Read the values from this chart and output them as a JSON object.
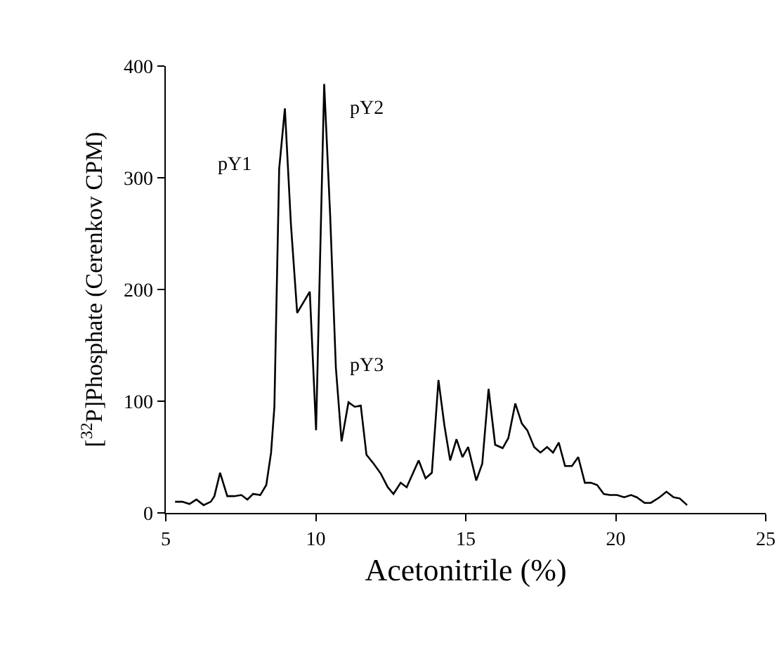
{
  "chart_data": {
    "type": "line",
    "xlabel": "Acetonitrile (%)",
    "ylabel": "[$^{32}$P]Phosphate (Cerenkov CPM)",
    "xlim": [
      5,
      25
    ],
    "ylim": [
      0,
      400
    ],
    "xticks": [
      5,
      10,
      15,
      20,
      25
    ],
    "yticks": [
      0,
      100,
      200,
      300,
      400
    ],
    "grid": false,
    "marker": "none",
    "line_style": "solid",
    "annotations": [
      "pY1",
      "pY2",
      "pY3"
    ],
    "series": [
      {
        "color": "#000000",
        "x": [
          5.31,
          5.55,
          5.79,
          6.02,
          6.26,
          6.5,
          6.62,
          6.81,
          7.05,
          7.28,
          7.52,
          7.72,
          7.91,
          8.15,
          8.35,
          8.51,
          8.62,
          8.78,
          8.97,
          9.17,
          9.38,
          9.8,
          10.01,
          10.28,
          10.48,
          10.67,
          10.86,
          11.09,
          11.3,
          11.5,
          11.69,
          11.93,
          12.17,
          12.4,
          12.59,
          12.83,
          13.03,
          13.43,
          13.66,
          13.87,
          14.09,
          14.29,
          14.48,
          14.69,
          14.89,
          15.08,
          15.35,
          15.55,
          15.76,
          15.98,
          16.23,
          16.42,
          16.65,
          16.87,
          17.05,
          17.28,
          17.49,
          17.71,
          17.91,
          18.1,
          18.31,
          18.54,
          18.75,
          18.97,
          19.17,
          19.38,
          19.6,
          19.8,
          20.04,
          20.28,
          20.51,
          20.7,
          20.96,
          21.17,
          21.46,
          21.69,
          21.93,
          22.13,
          22.38
        ],
        "values": [
          10,
          10,
          8,
          12,
          7,
          10,
          15,
          36,
          15,
          15,
          16,
          12,
          17,
          16,
          25,
          54,
          95,
          308,
          362,
          259,
          179,
          198,
          74,
          384,
          266,
          130,
          64,
          99,
          95,
          96,
          52,
          44,
          35,
          23,
          17,
          27,
          23,
          47,
          31,
          36,
          119,
          78,
          47,
          66,
          50,
          59,
          29,
          44,
          111,
          61,
          58,
          67,
          98,
          80,
          74,
          59,
          54,
          59,
          54,
          63,
          42,
          42,
          50,
          27,
          27,
          25,
          17,
          16,
          16,
          14,
          16,
          14,
          9,
          9,
          14,
          19,
          14,
          13,
          7
        ]
      }
    ]
  }
}
